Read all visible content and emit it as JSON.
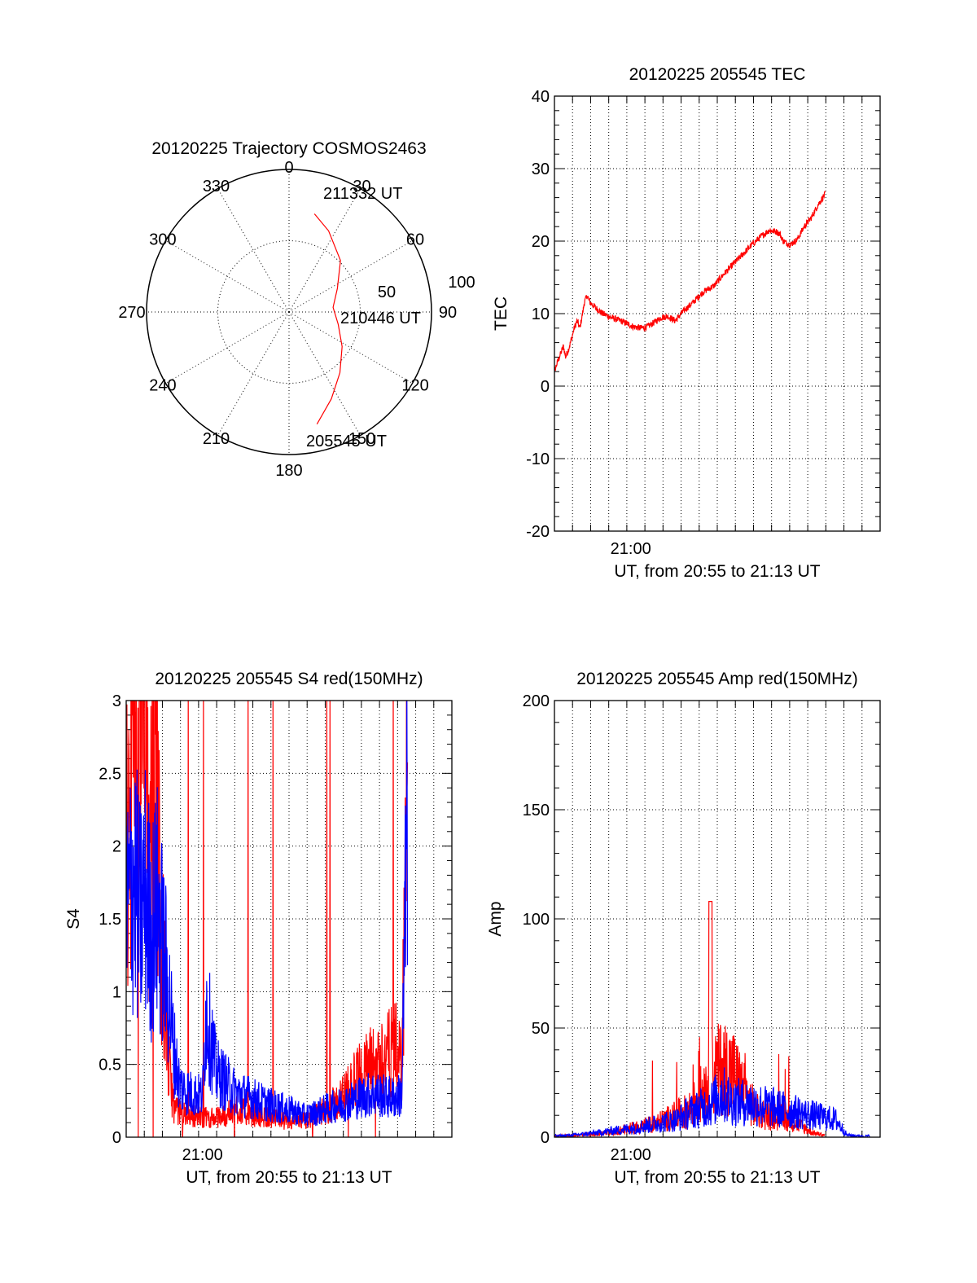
{
  "chart_data": [
    {
      "id": "polar",
      "type": "polar_trajectory",
      "title": "20120225 Trajectory COSMOS2463",
      "azimuth_labels": [
        "0",
        "30",
        "60",
        "90",
        "120",
        "150",
        "180",
        "210",
        "240",
        "270",
        "300",
        "330"
      ],
      "radial_labels": [
        "50",
        "100"
      ],
      "trajectory": [
        {
          "az": 14.5,
          "el": 26
        },
        {
          "az": 26,
          "el": 33
        },
        {
          "az": 45,
          "el": 44
        },
        {
          "az": 64,
          "el": 56
        },
        {
          "az": 84,
          "el": 62
        },
        {
          "az": 104,
          "el": 58
        },
        {
          "az": 123,
          "el": 50
        },
        {
          "az": 140,
          "el": 40
        },
        {
          "az": 154,
          "el": 29
        },
        {
          "az": 166,
          "el": 17
        }
      ],
      "annotations": [
        {
          "text": "211332 UT",
          "az": 17,
          "el": 22
        },
        {
          "text": "210446 UT",
          "az": 83,
          "el": 59
        },
        {
          "text": "205545 UT",
          "az": 148,
          "el": 2
        }
      ],
      "trajectory_color": "#ff0000"
    },
    {
      "id": "tec",
      "type": "line",
      "title": "20120225 205545 TEC",
      "xlabel": "UT, from 20:55 to 21:13 UT",
      "ylabel": "TEC",
      "x_tick_labels": [
        {
          "x": 21.0,
          "label": "21:00"
        }
      ],
      "xlim": [
        20.933,
        21.219
      ],
      "ylim": [
        -20,
        40
      ],
      "yticks": [
        -20,
        -10,
        0,
        10,
        20,
        30,
        40
      ],
      "grid": true,
      "series": [
        {
          "color": "#ff0000",
          "x": [
            20.9285,
            20.9319,
            20.935,
            20.9385,
            20.9409,
            20.9428,
            20.9452,
            20.948,
            20.9504,
            20.9529,
            20.9553,
            20.9577,
            20.9592,
            20.9617,
            20.9644,
            20.9693,
            20.9755,
            20.9822,
            20.9914,
            21.0024,
            21.0097,
            21.0146,
            21.0207,
            21.0269,
            21.033,
            21.0391,
            21.0452,
            21.0544,
            21.0636,
            21.0728,
            21.082,
            21.0942,
            21.1064,
            21.1156,
            21.1217,
            21.1278,
            21.1309,
            21.1339,
            21.14,
            21.1462,
            21.1523,
            21.1584,
            21.1645,
            21.1706
          ],
          "y": [
            0,
            1.5,
            3,
            4.5,
            5.5,
            4,
            5,
            6.5,
            8,
            9,
            8,
            10,
            11.5,
            12.5,
            11.5,
            10.8,
            10,
            9.5,
            9,
            8.2,
            8.0,
            8.2,
            8.8,
            9.5,
            9.6,
            9.0,
            10.2,
            11.5,
            13,
            13.8,
            15.5,
            17.5,
            19.5,
            20.8,
            21.5,
            21.3,
            21.0,
            20.0,
            19.5,
            20.2,
            22.0,
            23.2,
            25.0,
            26.5
          ]
        }
      ]
    },
    {
      "id": "s4",
      "type": "line",
      "title": "20120225 205545 S4 red(150MHz)",
      "xlabel": "UT, from 20:55 to 21:13 UT",
      "ylabel": "S4",
      "x_tick_labels": [
        {
          "x": 21.0,
          "label": "21:00"
        }
      ],
      "xlim": [
        20.933,
        21.219
      ],
      "ylim": [
        0,
        3
      ],
      "yticks": [
        0,
        0.5,
        1,
        1.5,
        2,
        2.5,
        3
      ],
      "ytick_labels": [
        "0",
        "0.5",
        "1",
        "1.5",
        "2",
        "2.5",
        "3"
      ],
      "grid": true,
      "series": [
        {
          "color": "#ff0000",
          "x": [
            20.93,
            20.935,
            20.94,
            20.943,
            20.946,
            20.95,
            20.953,
            20.957,
            20.96,
            20.963,
            20.967,
            20.97,
            20.975,
            20.98,
            20.99,
            21.0,
            21.01,
            21.02,
            21.03,
            21.04,
            21.05,
            21.06,
            21.07,
            21.075,
            21.08,
            21.09,
            21.1,
            21.11,
            21.12,
            21.13,
            21.14,
            21.15,
            21.16,
            21.17,
            21.175,
            21.18
          ],
          "y": [
            1.5,
            2.2,
            3.0,
            2.0,
            3.0,
            2.5,
            1.8,
            3.0,
            2.5,
            1.5,
            1.0,
            0.5,
            0.2,
            0.17,
            0.15,
            0.14,
            0.13,
            0.15,
            0.2,
            0.16,
            0.15,
            0.13,
            0.12,
            0.1,
            0.1,
            0.12,
            0.15,
            0.2,
            0.25,
            0.35,
            0.45,
            0.5,
            0.55,
            0.6,
            0.5,
            2.5
          ]
        },
        {
          "color": "#0000ff",
          "x": [
            20.93,
            20.935,
            20.94,
            20.945,
            20.95,
            20.955,
            20.96,
            20.965,
            20.97,
            20.975,
            20.98,
            20.99,
            21.0,
            21.003,
            21.007,
            21.012,
            21.02,
            21.03,
            21.04,
            21.05,
            21.06,
            21.07,
            21.08,
            21.09,
            21.1,
            21.11,
            21.12,
            21.13,
            21.14,
            21.15,
            21.16,
            21.17,
            21.175,
            21.18
          ],
          "y": [
            1.4,
            1.6,
            1.8,
            1.5,
            1.7,
            1.4,
            1.6,
            1.3,
            1.0,
            0.6,
            0.35,
            0.3,
            0.28,
            0.9,
            0.7,
            0.45,
            0.38,
            0.3,
            0.28,
            0.25,
            0.22,
            0.2,
            0.18,
            0.15,
            0.17,
            0.2,
            0.22,
            0.25,
            0.28,
            0.3,
            0.28,
            0.27,
            0.3,
            2.3
          ]
        }
      ]
    },
    {
      "id": "amp",
      "type": "line",
      "title": "20120225 205545 Amp red(150MHz)",
      "xlabel": "UT, from 20:55 to 21:13 UT",
      "ylabel": "Amp",
      "x_tick_labels": [
        {
          "x": 21.0,
          "label": "21:00"
        }
      ],
      "xlim": [
        20.933,
        21.219
      ],
      "ylim": [
        0,
        200
      ],
      "yticks": [
        0,
        50,
        100,
        150,
        200
      ],
      "grid": true,
      "series": [
        {
          "color": "#ff0000",
          "x": [
            20.93,
            20.96,
            20.98,
            21.0,
            21.02,
            21.03,
            21.04,
            21.05,
            21.06,
            21.07,
            21.08,
            21.09,
            21.1,
            21.11,
            21.12,
            21.13,
            21.14,
            21.15,
            21.16,
            21.17
          ],
          "y": [
            0.5,
            1,
            2,
            4,
            6,
            8,
            10,
            12,
            18,
            28,
            32,
            30,
            20,
            12,
            10,
            9,
            8,
            5,
            2,
            1
          ]
        },
        {
          "color": "#0000ff",
          "x": [
            20.93,
            20.95,
            20.97,
            21.0,
            21.02,
            21.04,
            21.05,
            21.06,
            21.07,
            21.08,
            21.085,
            21.09,
            21.1,
            21.11,
            21.12,
            21.13,
            21.14,
            21.15,
            21.16,
            21.17,
            21.18,
            21.19,
            21.2,
            21.21
          ],
          "y": [
            0.5,
            1,
            2,
            4,
            6,
            8,
            11,
            13,
            15,
            20,
            18,
            16,
            16,
            15,
            14,
            13,
            12,
            11,
            10,
            9,
            8,
            1,
            0.5,
            0.5
          ]
        }
      ]
    }
  ]
}
